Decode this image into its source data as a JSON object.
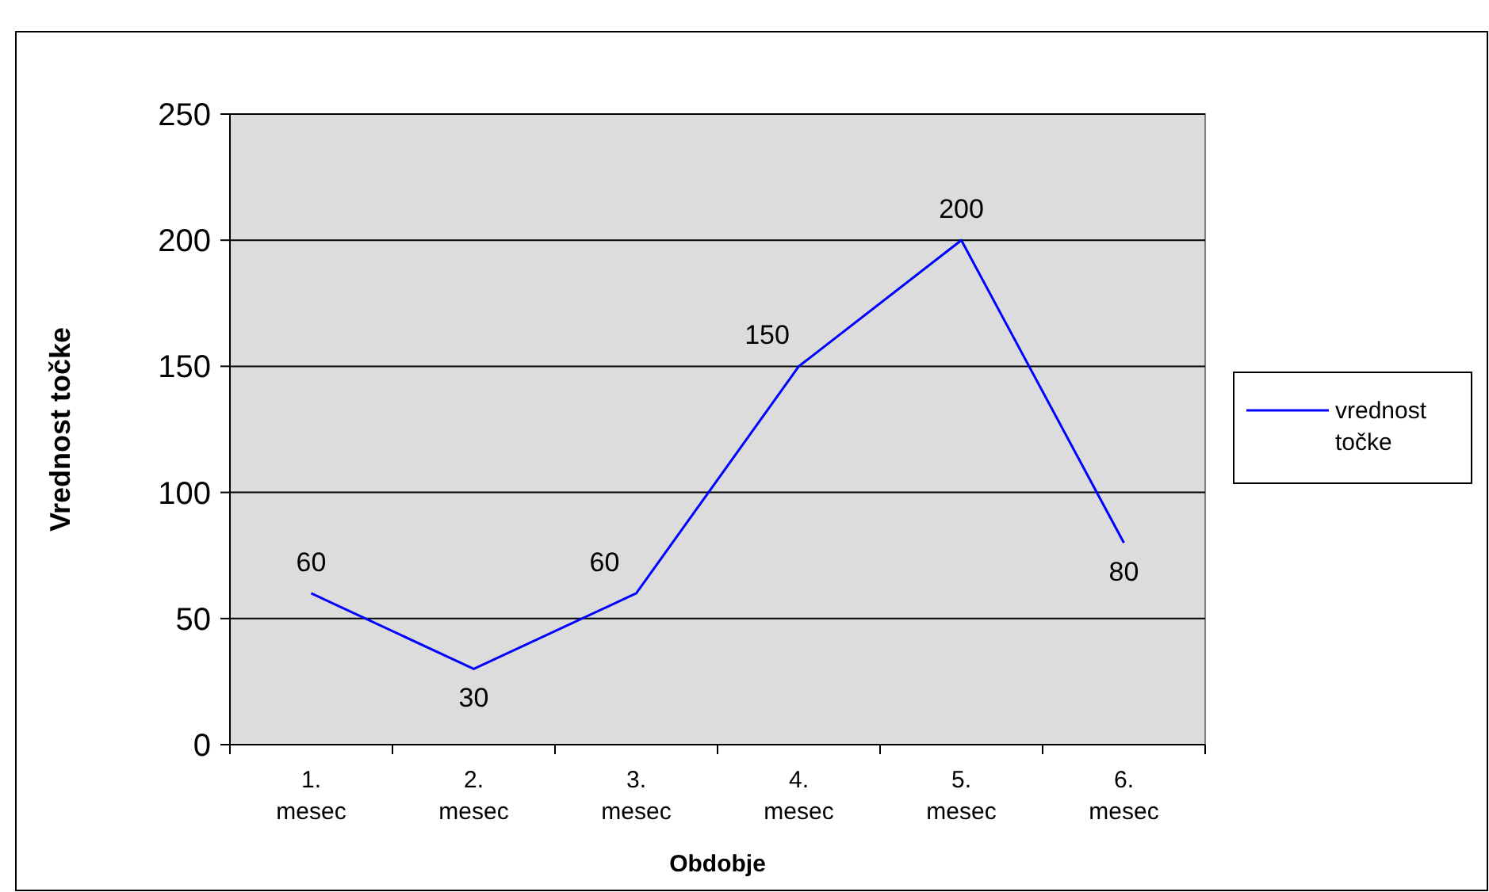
{
  "chart_data": {
    "type": "line",
    "xlabel": "Obdobje",
    "ylabel": "Vrednost točke",
    "categories": [
      "1. mesec",
      "2. mesec",
      "3. mesec",
      "4. mesec",
      "5. mesec",
      "6. mesec"
    ],
    "series": [
      {
        "name": "vrednost točke",
        "color": "#0000ff",
        "values": [
          60,
          30,
          60,
          150,
          200,
          80
        ]
      }
    ],
    "ylim": [
      0,
      250
    ],
    "yticks": [
      0,
      50,
      100,
      150,
      200,
      250
    ],
    "grid": "y",
    "legend": "right",
    "data_labels": true,
    "marker": "none",
    "line_style": "solid"
  }
}
